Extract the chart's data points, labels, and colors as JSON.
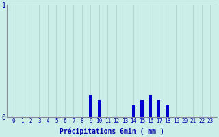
{
  "categories": [
    0,
    1,
    2,
    3,
    4,
    5,
    6,
    7,
    8,
    9,
    10,
    11,
    12,
    13,
    14,
    15,
    16,
    17,
    18,
    19,
    20,
    21,
    22,
    23
  ],
  "values": [
    0,
    0,
    0,
    0,
    0,
    0,
    0,
    0,
    0,
    0.2,
    0.15,
    0,
    0,
    0,
    0.1,
    0.15,
    0.2,
    0.15,
    0.1,
    0,
    0,
    0,
    0,
    0
  ],
  "bar_color": "#0000cc",
  "background_color": "#cceee8",
  "grid_color": "#aacccc",
  "axis_color": "#888899",
  "text_color": "#0000aa",
  "xlabel": "Précipitations 6min ( mm )",
  "ylim": [
    0,
    1
  ],
  "yticks": [
    0,
    1
  ],
  "bar_width": 0.35
}
